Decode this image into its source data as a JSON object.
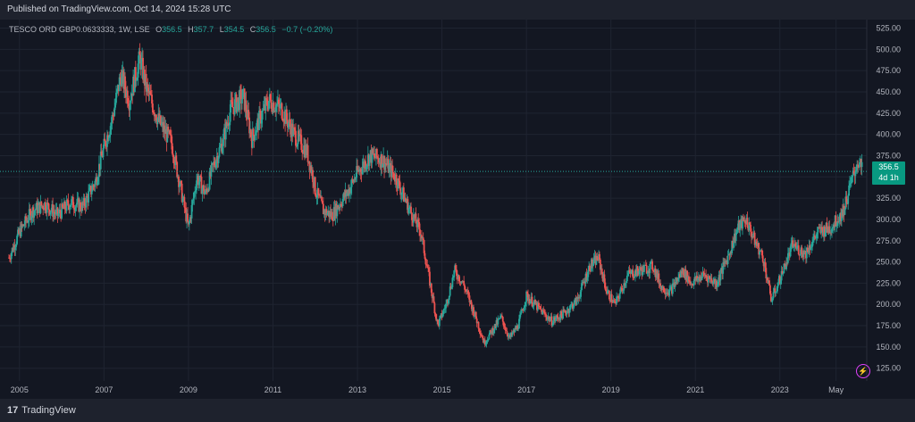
{
  "header": {
    "published": "Published on TradingView.com, Oct 14, 2024 15:28 UTC"
  },
  "legend": {
    "symbol": "TESCO ORD GBP0.0633333, 1W, LSE",
    "o_label": "O",
    "open": "356.5",
    "h_label": "H",
    "high": "357.7",
    "l_label": "L",
    "low": "354.5",
    "c_label": "C",
    "close": "356.5",
    "change": "−0.7 (−0.20%)"
  },
  "price_tag": {
    "price": "356.5",
    "countdown": "4d 1h"
  },
  "footer": {
    "brand": "TradingView",
    "logo_mark": "17"
  },
  "colors": {
    "up": "#26a69a",
    "down": "#ef5350",
    "background": "#131722",
    "grid": "#1f2431",
    "last_price_line": "#26a69a"
  },
  "icons": {
    "quick_action": "lightning-icon"
  },
  "chart_data": {
    "type": "candlestick",
    "interval": "1W",
    "ylim": [
      110,
      535
    ],
    "y_ticks": [
      125,
      150,
      175,
      200,
      225,
      250,
      275,
      300,
      325,
      350,
      375,
      400,
      425,
      450,
      475,
      500,
      525
    ],
    "y_tick_labels": [
      "125.00",
      "150.00",
      "175.00",
      "200.00",
      "225.00",
      "250.00",
      "275.00",
      "300.00",
      "325.00",
      "350.00",
      "375.00",
      "400.00",
      "425.00",
      "450.00",
      "475.00",
      "500.00",
      "525.00"
    ],
    "x_range": [
      2004.75,
      2024.95
    ],
    "x_ticks": [
      2005,
      2007,
      2009,
      2011,
      2013,
      2015,
      2017,
      2019,
      2021,
      2023,
      2024.33
    ],
    "x_tick_labels": [
      "2005",
      "2007",
      "2009",
      "2011",
      "2013",
      "2015",
      "2017",
      "2019",
      "2021",
      "2023",
      "May"
    ],
    "last_price": 356.5,
    "price_path": [
      [
        2004.75,
        255
      ],
      [
        2005.0,
        285
      ],
      [
        2005.3,
        310
      ],
      [
        2005.6,
        318
      ],
      [
        2005.9,
        305
      ],
      [
        2006.2,
        320
      ],
      [
        2006.5,
        315
      ],
      [
        2006.8,
        345
      ],
      [
        2007.0,
        385
      ],
      [
        2007.2,
        420
      ],
      [
        2007.4,
        470
      ],
      [
        2007.6,
        440
      ],
      [
        2007.85,
        490
      ],
      [
        2008.0,
        455
      ],
      [
        2008.3,
        415
      ],
      [
        2008.6,
        390
      ],
      [
        2008.8,
        340
      ],
      [
        2009.0,
        290
      ],
      [
        2009.2,
        350
      ],
      [
        2009.4,
        330
      ],
      [
        2009.6,
        365
      ],
      [
        2009.8,
        390
      ],
      [
        2010.0,
        430
      ],
      [
        2010.3,
        445
      ],
      [
        2010.5,
        395
      ],
      [
        2010.7,
        420
      ],
      [
        2010.9,
        440
      ],
      [
        2011.2,
        430
      ],
      [
        2011.5,
        400
      ],
      [
        2011.8,
        380
      ],
      [
        2011.95,
        350
      ],
      [
        2012.0,
        335
      ],
      [
        2012.2,
        310
      ],
      [
        2012.4,
        305
      ],
      [
        2012.6,
        320
      ],
      [
        2012.8,
        335
      ],
      [
        2013.0,
        355
      ],
      [
        2013.3,
        375
      ],
      [
        2013.6,
        370
      ],
      [
        2013.9,
        350
      ],
      [
        2014.2,
        315
      ],
      [
        2014.5,
        285
      ],
      [
        2014.7,
        230
      ],
      [
        2014.9,
        175
      ],
      [
        2015.1,
        200
      ],
      [
        2015.3,
        240
      ],
      [
        2015.5,
        225
      ],
      [
        2015.8,
        185
      ],
      [
        2016.0,
        155
      ],
      [
        2016.2,
        170
      ],
      [
        2016.4,
        185
      ],
      [
        2016.6,
        160
      ],
      [
        2016.8,
        175
      ],
      [
        2017.0,
        210
      ],
      [
        2017.3,
        195
      ],
      [
        2017.6,
        180
      ],
      [
        2017.9,
        190
      ],
      [
        2018.2,
        205
      ],
      [
        2018.5,
        245
      ],
      [
        2018.7,
        255
      ],
      [
        2018.9,
        215
      ],
      [
        2019.1,
        200
      ],
      [
        2019.4,
        235
      ],
      [
        2019.7,
        240
      ],
      [
        2020.0,
        245
      ],
      [
        2020.2,
        220
      ],
      [
        2020.4,
        215
      ],
      [
        2020.7,
        240
      ],
      [
        2020.9,
        225
      ],
      [
        2021.2,
        235
      ],
      [
        2021.5,
        225
      ],
      [
        2021.8,
        260
      ],
      [
        2022.0,
        290
      ],
      [
        2022.2,
        300
      ],
      [
        2022.4,
        275
      ],
      [
        2022.6,
        255
      ],
      [
        2022.8,
        205
      ],
      [
        2023.0,
        230
      ],
      [
        2023.3,
        270
      ],
      [
        2023.6,
        260
      ],
      [
        2023.9,
        285
      ],
      [
        2024.2,
        290
      ],
      [
        2024.5,
        310
      ],
      [
        2024.7,
        345
      ],
      [
        2024.85,
        370
      ],
      [
        2024.95,
        356.5
      ]
    ]
  }
}
